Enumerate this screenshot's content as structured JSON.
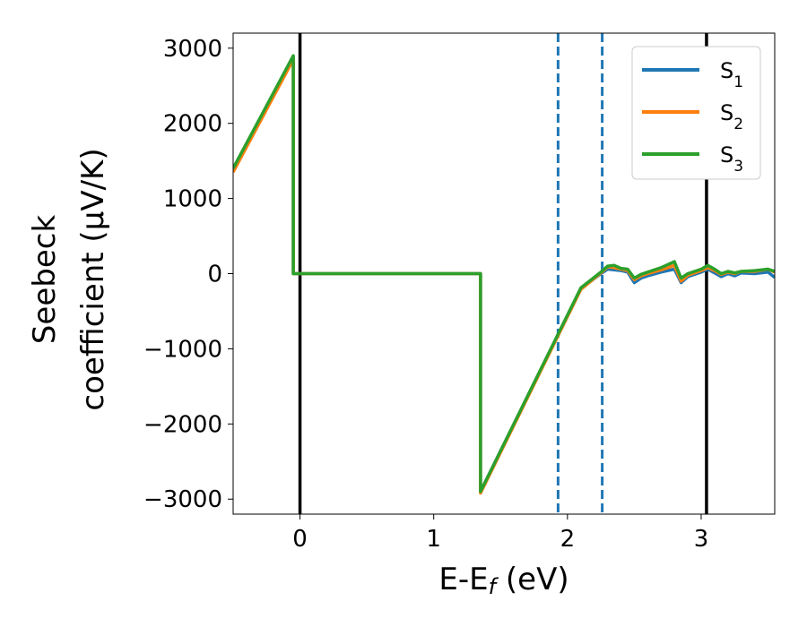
{
  "chart_data": {
    "type": "line",
    "xlabel": "E-E_f (eV)",
    "ylabel_lines": [
      "Seebeck",
      "coefficient  (μV/K)"
    ],
    "xlim": [
      -0.5,
      3.55
    ],
    "ylim": [
      -3200,
      3200
    ],
    "xticks": [
      0,
      1,
      2,
      3
    ],
    "yticks": [
      -3000,
      -2000,
      -1000,
      0,
      1000,
      2000,
      3000
    ],
    "grid": false,
    "legend_position": "top-right",
    "series": [
      {
        "name": "S1",
        "legend_base": "S",
        "legend_sub": "1",
        "color": "#1f77b4",
        "x": [
          -0.5,
          -0.05,
          -0.05,
          1.35,
          1.35,
          2.1,
          2.25,
          2.3,
          2.35,
          2.4,
          2.45,
          2.5,
          2.55,
          2.6,
          2.7,
          2.8,
          2.85,
          2.9,
          3.0,
          3.05,
          3.1,
          3.15,
          3.2,
          3.25,
          3.3,
          3.4,
          3.5,
          3.55
        ],
        "y": [
          1400,
          2880,
          0,
          0,
          -2900,
          -200,
          0,
          60,
          50,
          40,
          20,
          -120,
          -60,
          -30,
          20,
          60,
          -120,
          -40,
          20,
          60,
          10,
          -40,
          0,
          -30,
          10,
          0,
          20,
          -50
        ]
      },
      {
        "name": "S2",
        "legend_base": "S",
        "legend_sub": "2",
        "color": "#ff7f0e",
        "x": [
          -0.5,
          -0.05,
          -0.05,
          1.35,
          1.35,
          2.1,
          2.25,
          2.3,
          2.35,
          2.4,
          2.45,
          2.5,
          2.55,
          2.6,
          2.7,
          2.8,
          2.85,
          2.9,
          3.0,
          3.05,
          3.1,
          3.15,
          3.2,
          3.25,
          3.3,
          3.4,
          3.5,
          3.55
        ],
        "y": [
          1350,
          2850,
          0,
          0,
          -2920,
          -210,
          10,
          90,
          80,
          60,
          40,
          -80,
          -30,
          0,
          50,
          110,
          -100,
          -20,
          40,
          80,
          40,
          -10,
          20,
          0,
          30,
          30,
          60,
          20
        ]
      },
      {
        "name": "S3",
        "legend_base": "S",
        "legend_sub": "3",
        "color": "#2ca02c",
        "x": [
          -0.5,
          -0.05,
          -0.05,
          1.35,
          1.35,
          2.1,
          2.25,
          2.3,
          2.35,
          2.4,
          2.45,
          2.5,
          2.55,
          2.6,
          2.7,
          2.8,
          2.85,
          2.9,
          3.0,
          3.05,
          3.1,
          3.15,
          3.2,
          3.25,
          3.3,
          3.4,
          3.5,
          3.55
        ],
        "y": [
          1400,
          2900,
          0,
          0,
          -2900,
          -190,
          20,
          100,
          110,
          70,
          60,
          -60,
          -10,
          20,
          80,
          160,
          -60,
          0,
          60,
          110,
          60,
          0,
          30,
          10,
          30,
          40,
          60,
          30
        ]
      }
    ],
    "vlines": [
      {
        "x": 0.0,
        "style": "solid",
        "color": "#000000"
      },
      {
        "x": 3.04,
        "style": "solid",
        "color": "#000000"
      },
      {
        "x": 1.93,
        "style": "dashed",
        "color": "#1f77b4"
      },
      {
        "x": 2.26,
        "style": "dashed",
        "color": "#1f77b4"
      }
    ]
  }
}
